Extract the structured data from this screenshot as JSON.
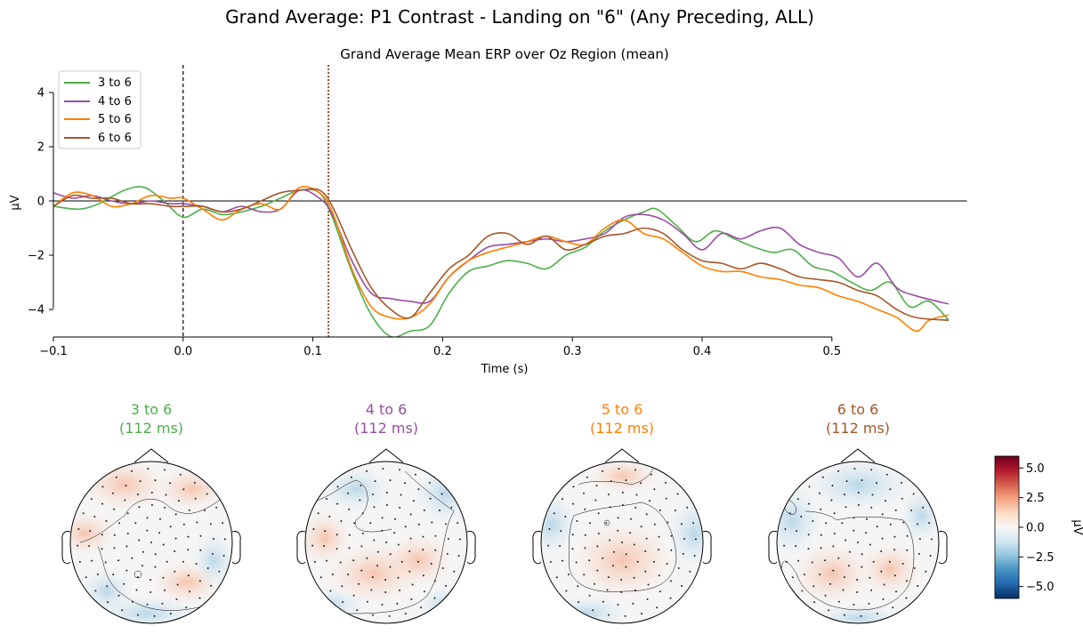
{
  "figure": {
    "title": "Grand Average: P1 Contrast - Landing on \"6\" (Any Preceding, ALL)"
  },
  "chart_data": [
    {
      "type": "line",
      "title": "Grand Average Mean ERP over Oz Region (mean)",
      "xlabel": "Time (s)",
      "ylabel": "µV",
      "xlim": [
        -0.1,
        0.6
      ],
      "ylim": [
        -5,
        5
      ],
      "xticks": [
        "-0.1",
        "0.0",
        "0.1",
        "0.2",
        "0.3",
        "0.4",
        "0.5"
      ],
      "yticks": [
        "4",
        "2",
        "0",
        "-2",
        "-4"
      ],
      "xtick_values": [
        -0.1,
        0.0,
        0.1,
        0.2,
        0.3,
        0.4,
        0.5
      ],
      "ytick_values": [
        4,
        2,
        0,
        -2,
        -4
      ],
      "vlines": [
        {
          "x": 0.0,
          "style": "dashed",
          "color": "#000000"
        },
        {
          "x": 0.112,
          "style": "dotted",
          "color": "#a0522d"
        }
      ],
      "hline": 0,
      "legend_position": "top-left",
      "series": [
        {
          "name": "3 to 6",
          "color": "#4daf4a",
          "x": [
            -0.1,
            -0.08,
            -0.065,
            -0.045,
            -0.03,
            -0.015,
            0.0,
            0.015,
            0.03,
            0.045,
            0.06,
            0.075,
            0.09,
            0.105,
            0.115,
            0.13,
            0.145,
            0.16,
            0.175,
            0.19,
            0.205,
            0.22,
            0.235,
            0.25,
            0.265,
            0.28,
            0.295,
            0.31,
            0.325,
            0.34,
            0.355,
            0.365,
            0.38,
            0.395,
            0.41,
            0.425,
            0.44,
            0.455,
            0.47,
            0.485,
            0.5,
            0.515,
            0.53,
            0.545,
            0.56,
            0.575,
            0.59
          ],
          "y": [
            -0.2,
            -0.3,
            -0.1,
            0.4,
            0.5,
            0.0,
            -0.6,
            -0.3,
            -0.5,
            -0.4,
            -0.2,
            0.1,
            0.4,
            0.3,
            -0.6,
            -2.6,
            -4.2,
            -5.0,
            -4.8,
            -4.6,
            -3.4,
            -2.6,
            -2.4,
            -2.2,
            -2.3,
            -2.5,
            -2.0,
            -1.7,
            -1.1,
            -0.7,
            -0.4,
            -0.3,
            -0.9,
            -1.5,
            -1.1,
            -1.4,
            -1.7,
            -1.9,
            -1.8,
            -2.4,
            -2.6,
            -3.0,
            -3.3,
            -3.0,
            -3.9,
            -3.7,
            -4.4
          ]
        },
        {
          "name": "4 to 6",
          "color": "#984ea3",
          "x": [
            -0.1,
            -0.085,
            -0.07,
            -0.055,
            -0.04,
            -0.025,
            -0.01,
            0.0,
            0.015,
            0.03,
            0.045,
            0.06,
            0.075,
            0.09,
            0.105,
            0.115,
            0.13,
            0.145,
            0.16,
            0.175,
            0.19,
            0.205,
            0.22,
            0.235,
            0.25,
            0.265,
            0.28,
            0.295,
            0.31,
            0.325,
            0.34,
            0.355,
            0.37,
            0.385,
            0.4,
            0.415,
            0.43,
            0.445,
            0.46,
            0.475,
            0.49,
            0.505,
            0.52,
            0.535,
            0.55,
            0.565,
            0.59
          ],
          "y": [
            0.3,
            0.1,
            0.2,
            0.0,
            -0.1,
            0.0,
            -0.1,
            -0.1,
            -0.2,
            -0.4,
            -0.2,
            -0.4,
            -0.3,
            0.4,
            0.1,
            -0.5,
            -2.2,
            -3.4,
            -3.6,
            -3.7,
            -3.7,
            -2.8,
            -2.2,
            -1.7,
            -1.6,
            -1.5,
            -1.4,
            -1.5,
            -1.4,
            -1.2,
            -0.6,
            -0.5,
            -0.7,
            -1.2,
            -1.8,
            -1.2,
            -1.4,
            -1.1,
            -1.0,
            -1.6,
            -1.9,
            -2.1,
            -2.8,
            -2.3,
            -3.2,
            -3.5,
            -3.8
          ]
        },
        {
          "name": "5 to 6",
          "color": "#ff7f00",
          "x": [
            -0.1,
            -0.085,
            -0.07,
            -0.055,
            -0.04,
            -0.025,
            -0.01,
            0.0,
            0.015,
            0.03,
            0.045,
            0.06,
            0.075,
            0.09,
            0.105,
            0.115,
            0.13,
            0.145,
            0.16,
            0.175,
            0.19,
            0.205,
            0.22,
            0.235,
            0.25,
            0.265,
            0.28,
            0.295,
            0.31,
            0.325,
            0.34,
            0.355,
            0.37,
            0.385,
            0.4,
            0.415,
            0.43,
            0.445,
            0.46,
            0.475,
            0.49,
            0.505,
            0.52,
            0.535,
            0.55,
            0.565,
            0.575,
            0.59
          ],
          "y": [
            -0.2,
            0.3,
            0.2,
            -0.2,
            -0.1,
            0.2,
            0.1,
            0.1,
            -0.3,
            -0.7,
            -0.3,
            -0.1,
            -0.3,
            0.5,
            0.3,
            -0.4,
            -2.5,
            -3.9,
            -4.3,
            -4.3,
            -3.8,
            -2.8,
            -2.2,
            -1.9,
            -1.7,
            -1.5,
            -1.3,
            -1.5,
            -1.6,
            -1.0,
            -0.7,
            -1.2,
            -1.4,
            -1.9,
            -2.4,
            -2.6,
            -2.6,
            -2.8,
            -2.9,
            -3.1,
            -3.2,
            -3.5,
            -3.7,
            -4.0,
            -4.3,
            -4.8,
            -4.4,
            -4.2
          ]
        },
        {
          "name": "6 to 6",
          "color": "#a65628",
          "x": [
            -0.1,
            -0.085,
            -0.07,
            -0.055,
            -0.04,
            -0.025,
            -0.01,
            0.0,
            0.015,
            0.03,
            0.045,
            0.06,
            0.075,
            0.09,
            0.105,
            0.115,
            0.13,
            0.145,
            0.16,
            0.175,
            0.19,
            0.205,
            0.22,
            0.235,
            0.25,
            0.265,
            0.28,
            0.295,
            0.31,
            0.325,
            0.34,
            0.355,
            0.37,
            0.385,
            0.4,
            0.415,
            0.43,
            0.445,
            0.46,
            0.475,
            0.49,
            0.505,
            0.52,
            0.535,
            0.55,
            0.565,
            0.59
          ],
          "y": [
            -0.2,
            0.2,
            0.1,
            0.1,
            -0.1,
            -0.1,
            -0.2,
            -0.2,
            -0.2,
            -0.4,
            -0.3,
            0.0,
            0.3,
            0.4,
            0.4,
            -0.2,
            -1.8,
            -3.2,
            -4.0,
            -4.3,
            -3.4,
            -2.5,
            -2.0,
            -1.3,
            -1.2,
            -1.6,
            -1.3,
            -1.8,
            -1.6,
            -1.3,
            -1.2,
            -1.0,
            -1.2,
            -1.8,
            -2.2,
            -2.3,
            -2.5,
            -2.3,
            -2.5,
            -2.8,
            -2.9,
            -3.0,
            -3.3,
            -3.5,
            -4.0,
            -4.3,
            -4.4
          ]
        }
      ]
    },
    {
      "type": "heatmap",
      "subtype": "topomap",
      "colorbar": {
        "label": "µV",
        "range": [
          -6,
          6
        ],
        "ticks": [
          "5.0",
          "2.5",
          "0.0",
          "−2.5",
          "−5.0"
        ],
        "tick_values": [
          5.0,
          2.5,
          0.0,
          -2.5,
          -5.0
        ],
        "colors": [
          "#053061",
          "#2166ac",
          "#4393c3",
          "#92c5de",
          "#d1e5f0",
          "#f7f7f7",
          "#fddbc7",
          "#f4a582",
          "#d6604d",
          "#b2182b",
          "#67001f"
        ]
      },
      "maps": [
        {
          "title": "3 to 6",
          "time": "(112 ms)",
          "color": "#4daf4a"
        },
        {
          "title": "4 to 6",
          "time": "(112 ms)",
          "color": "#984ea3"
        },
        {
          "title": "5 to 6",
          "time": "(112 ms)",
          "color": "#ff7f00"
        },
        {
          "title": "6 to 6",
          "time": "(112 ms)",
          "color": "#a65628"
        }
      ]
    }
  ]
}
